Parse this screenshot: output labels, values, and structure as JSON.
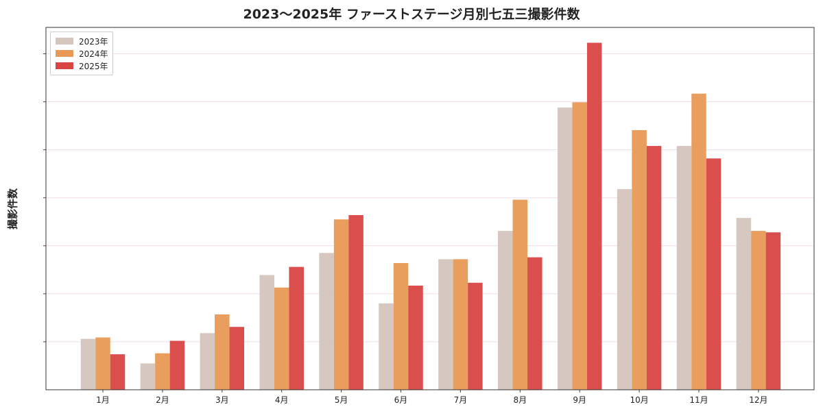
{
  "chart_data": {
    "type": "bar",
    "title": "2023〜2025年 ファーストステージ月別七五三撮影件数",
    "xlabel": "",
    "ylabel": "撮影件数",
    "categories": [
      "1月",
      "2月",
      "3月",
      "4月",
      "5月",
      "6月",
      "7月",
      "8月",
      "9月",
      "10月",
      "11月",
      "12月"
    ],
    "series": [
      {
        "name": "2023年",
        "color": "#d4c5bd",
        "values": [
          10.6,
          5.5,
          11.8,
          23.9,
          28.5,
          18.0,
          27.2,
          33.1,
          58.8,
          41.8,
          50.8,
          35.8
        ]
      },
      {
        "name": "2024年",
        "color": "#e89955",
        "values": [
          10.9,
          7.6,
          15.7,
          21.3,
          35.5,
          26.4,
          27.2,
          39.6,
          59.9,
          54.1,
          61.7,
          33.1
        ]
      },
      {
        "name": "2025年",
        "color": "#d94444",
        "values": [
          7.4,
          10.2,
          13.1,
          25.6,
          36.4,
          21.7,
          22.3,
          27.6,
          72.3,
          50.8,
          48.2,
          32.8
        ]
      }
    ],
    "ylim": [
      0,
      75.5
    ],
    "y_gridlines": [
      10,
      20,
      30,
      40,
      50,
      60,
      70
    ],
    "y_tick_labels_shown": false,
    "grid": true,
    "legend_position": "top-left"
  }
}
